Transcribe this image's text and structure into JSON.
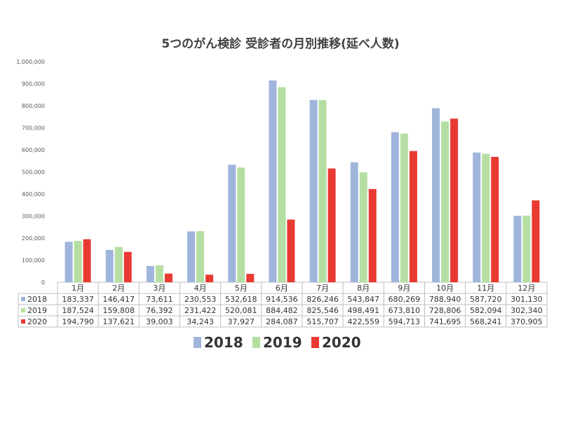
{
  "chart_data": {
    "type": "bar",
    "title": "5つのがん検診 受診者の月別推移(延べ人数)",
    "categories": [
      "1月",
      "2月",
      "3月",
      "4月",
      "5月",
      "6月",
      "7月",
      "8月",
      "9月",
      "10月",
      "11月",
      "12月"
    ],
    "series": [
      {
        "name": "2018",
        "color": "#9fb5dc",
        "values": [
          183337,
          146417,
          73611,
          230553,
          532618,
          914536,
          826246,
          543847,
          680269,
          788940,
          587720,
          301130
        ],
        "labels": [
          "183,337",
          "146,417",
          "73,611",
          "230,553",
          "532,618",
          "914,536",
          "826,246",
          "543,847",
          "680,269",
          "788,940",
          "587,720",
          "301,130"
        ]
      },
      {
        "name": "2019",
        "color": "#b5dfa2",
        "values": [
          187524,
          159808,
          76392,
          231422,
          520081,
          884482,
          825546,
          498491,
          673810,
          728806,
          582094,
          302340
        ],
        "labels": [
          "187,524",
          "159,808",
          "76,392",
          "231,422",
          "520,081",
          "884,482",
          "825,546",
          "498,491",
          "673,810",
          "728,806",
          "582,094",
          "302,340"
        ]
      },
      {
        "name": "2020",
        "color": "#e83a32",
        "values": [
          194790,
          137621,
          39003,
          34243,
          37927,
          284087,
          515707,
          422559,
          594713,
          741695,
          568241,
          370905
        ],
        "labels": [
          "194,790",
          "137,621",
          "39,003",
          "34,243",
          "37,927",
          "284,087",
          "515,707",
          "422,559",
          "594,713",
          "741,695",
          "568,241",
          "370,905"
        ]
      }
    ],
    "ylim": [
      0,
      1000000
    ],
    "yticks": [
      0,
      100000,
      200000,
      300000,
      400000,
      500000,
      600000,
      700000,
      800000,
      900000,
      1000000
    ],
    "ytick_labels": [
      "0",
      "100,000",
      "200,000",
      "300,000",
      "400,000",
      "500,000",
      "600,000",
      "700,000",
      "800,000",
      "900,000",
      "1,000,000"
    ],
    "grid": false,
    "legend_position": "bottom",
    "data_table": true
  }
}
